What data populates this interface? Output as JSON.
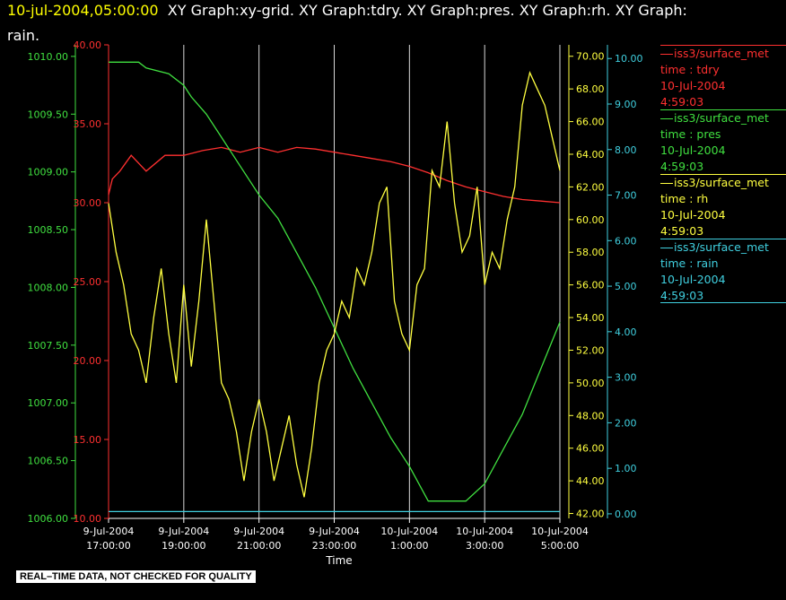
{
  "header": {
    "timestamp": "10-jul-2004,05:00:00",
    "timestamp_color": "#ffff00",
    "graphs_line1": "XY Graph:xy-grid.  XY Graph:tdry.  XY Graph:pres.  XY Graph:rh.  XY Graph:",
    "graphs_line2": "rain."
  },
  "legend": [
    {
      "source": "iss3/surface_met",
      "var": "time : tdry",
      "date": "10-Jul-2004",
      "time": "4:59:03",
      "color": "#ff3030"
    },
    {
      "source": "iss3/surface_met",
      "var": "time : pres",
      "date": "10-Jul-2004",
      "time": "4:59:03",
      "color": "#40e040"
    },
    {
      "source": "iss3/surface_met",
      "var": "time : rh",
      "date": "10-Jul-2004",
      "time": "4:59:03",
      "color": "#ffff40"
    },
    {
      "source": "iss3/surface_met",
      "var": "time : rain",
      "date": "10-Jul-2004",
      "time": "4:59:03",
      "color": "#40d0e0"
    }
  ],
  "disclaimer": "REAL–TIME DATA, NOT CHECKED FOR QUALITY",
  "chart_data": {
    "type": "line",
    "xlabel": "Time",
    "x_ticks": [
      {
        "date": "9-Jul-2004",
        "time": "17:00:00",
        "h": 17
      },
      {
        "date": "9-Jul-2004",
        "time": "19:00:00",
        "h": 19
      },
      {
        "date": "9-Jul-2004",
        "time": "21:00:00",
        "h": 21
      },
      {
        "date": "9-Jul-2004",
        "time": "23:00:00",
        "h": 23
      },
      {
        "date": "10-Jul-2004",
        "time": "1:00:00",
        "h": 25
      },
      {
        "date": "10-Jul-2004",
        "time": "3:00:00",
        "h": 27
      },
      {
        "date": "10-Jul-2004",
        "time": "5:00:00",
        "h": 29
      }
    ],
    "xlim_hours": [
      17,
      29
    ],
    "grid": "vertical",
    "axes": {
      "pres": {
        "color": "#40e040",
        "range": [
          1006.0,
          1010.1
        ],
        "ticks": [
          "1006.00",
          "1006.50",
          "1007.00",
          "1007.50",
          "1008.00",
          "1008.50",
          "1009.00",
          "1009.50",
          "1010.00"
        ]
      },
      "tdry": {
        "color": "#ff3030",
        "range": [
          10,
          40
        ],
        "ticks": [
          "10.00",
          "15.00",
          "20.00",
          "25.00",
          "30.00",
          "35.00",
          "40.00"
        ]
      },
      "rh": {
        "color": "#ffff40",
        "range": [
          41.7,
          70.7
        ],
        "ticks": [
          "42.00",
          "44.00",
          "46.00",
          "48.00",
          "50.00",
          "52.00",
          "54.00",
          "56.00",
          "58.00",
          "60.00",
          "62.00",
          "64.00",
          "66.00",
          "68.00",
          "70.00"
        ]
      },
      "rain": {
        "color": "#40d0e0",
        "range": [
          -0.1,
          10.3
        ],
        "ticks": [
          "0.00",
          "1.00",
          "2.00",
          "3.00",
          "4.00",
          "5.00",
          "6.00",
          "7.00",
          "8.00",
          "9.00",
          "10.00"
        ]
      }
    },
    "series": [
      {
        "name": "time : tdry",
        "axis": "tdry",
        "x": [
          17,
          17.1,
          17.3,
          17.6,
          18,
          18.5,
          19,
          19.5,
          20,
          20.5,
          21,
          21.5,
          22,
          22.5,
          23,
          23.5,
          24,
          24.5,
          25,
          25.5,
          26,
          26.5,
          27,
          27.5,
          28,
          28.5,
          29
        ],
        "y": [
          30.5,
          31.5,
          32,
          33,
          32,
          33,
          33,
          33.3,
          33.5,
          33.2,
          33.5,
          33.2,
          33.5,
          33.4,
          33.2,
          33,
          32.8,
          32.6,
          32.3,
          31.9,
          31.4,
          31,
          30.7,
          30.4,
          30.2,
          30.1,
          30.0
        ]
      },
      {
        "name": "time : pres",
        "axis": "pres",
        "x": [
          17,
          17.8,
          18,
          18.6,
          19,
          19.2,
          19.6,
          20,
          20.5,
          21,
          21.5,
          22,
          22.5,
          23,
          23.5,
          24,
          24.5,
          25,
          25.5,
          26,
          26.5,
          27,
          27.5,
          28,
          28.5,
          29
        ],
        "y": [
          1009.95,
          1009.95,
          1009.9,
          1009.85,
          1009.75,
          1009.65,
          1009.5,
          1009.3,
          1009.05,
          1008.8,
          1008.6,
          1008.3,
          1008.0,
          1007.65,
          1007.3,
          1007.0,
          1006.7,
          1006.45,
          1006.15,
          1006.15,
          1006.15,
          1006.3,
          1006.6,
          1006.9,
          1007.3,
          1007.7
        ]
      },
      {
        "name": "time : rh",
        "axis": "rh",
        "x": [
          17,
          17.2,
          17.4,
          17.6,
          17.8,
          18,
          18.2,
          18.4,
          18.6,
          18.8,
          19,
          19.2,
          19.4,
          19.6,
          19.8,
          20,
          20.2,
          20.4,
          20.6,
          20.8,
          21,
          21.2,
          21.4,
          21.6,
          21.8,
          22,
          22.2,
          22.4,
          22.6,
          22.8,
          23,
          23.2,
          23.4,
          23.6,
          23.8,
          24,
          24.2,
          24.4,
          24.6,
          24.8,
          25,
          25.2,
          25.4,
          25.6,
          25.8,
          26,
          26.2,
          26.4,
          26.6,
          26.8,
          27,
          27.2,
          27.4,
          27.6,
          27.8,
          28,
          28.2,
          28.4,
          28.6,
          28.8,
          29
        ],
        "y": [
          61,
          58,
          56,
          53,
          52,
          50,
          54,
          57,
          53,
          50,
          56,
          51,
          55,
          60,
          55,
          50,
          49,
          47,
          44,
          47,
          49,
          47,
          44,
          46,
          48,
          45,
          43,
          46,
          50,
          52,
          53,
          55,
          54,
          57,
          56,
          58,
          61,
          62,
          55,
          53,
          52,
          56,
          57,
          63,
          62,
          66,
          61,
          58,
          59,
          62,
          56,
          58,
          57,
          60,
          62,
          67,
          69,
          68,
          67,
          65,
          63
        ]
      },
      {
        "name": "time : rain",
        "axis": "rain",
        "x": [
          17,
          29
        ],
        "y": [
          0.05,
          0.05
        ]
      }
    ]
  }
}
